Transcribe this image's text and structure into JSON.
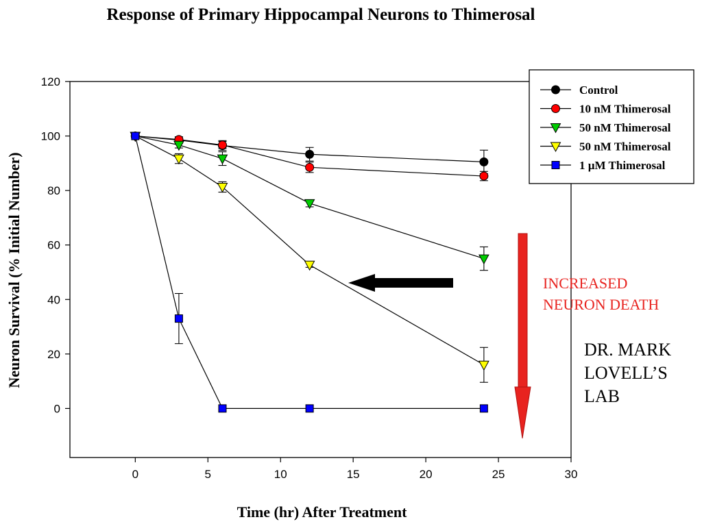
{
  "chart_data": {
    "type": "line",
    "title": "Response of Primary Hippocampal Neurons to Thimerosal",
    "xlabel": "Time (hr) After Treatment",
    "ylabel": "Neuron Survival (% Initial Number)",
    "xlim": [
      -4.5,
      30
    ],
    "ylim": [
      -18,
      120
    ],
    "xticks": [
      0,
      5,
      10,
      15,
      20,
      25,
      30
    ],
    "yticks": [
      0,
      20,
      40,
      60,
      80,
      100,
      120
    ],
    "grid": false,
    "legend_position": "top-right",
    "series": [
      {
        "name": "Control",
        "marker": "circle",
        "color": "#000000",
        "x": [
          0,
          3,
          6,
          12,
          24
        ],
        "y": [
          100,
          98.5,
          96.5,
          93.3,
          90.5
        ],
        "err": [
          0.7,
          1.2,
          1.8,
          2.5,
          4.3
        ]
      },
      {
        "name": "10 nM Thimerosal",
        "marker": "circle",
        "color": "#ff0000",
        "x": [
          0,
          3,
          6,
          12,
          24
        ],
        "y": [
          100,
          98.7,
          96.7,
          88.5,
          85.3
        ],
        "err": [
          0.6,
          1.0,
          1.3,
          1.9,
          1.7
        ]
      },
      {
        "name": "50 nM Thimerosal",
        "marker": "triangle-down",
        "color": "#00cc00",
        "x": [
          0,
          3,
          6,
          12,
          24
        ],
        "y": [
          100,
          96.7,
          91.7,
          75.3,
          55
        ],
        "err": [
          0.6,
          1.1,
          2.5,
          1.3,
          4.3
        ]
      },
      {
        "name": "50 nM Thimerosal",
        "marker": "triangle-down",
        "color": "#ffff00",
        "x": [
          0,
          3,
          6,
          12,
          24
        ],
        "y": [
          100,
          91.7,
          81.3,
          52.7,
          16
        ],
        "err": [
          0.6,
          1.8,
          1.9,
          0.9,
          6.4
        ]
      },
      {
        "name": "1 µM Thimerosal",
        "marker": "square",
        "color": "#0000ff",
        "x": [
          0,
          3,
          6,
          12,
          24
        ],
        "y": [
          100,
          33,
          0,
          0,
          0
        ],
        "err": [
          0.5,
          9.2,
          0,
          0,
          0
        ]
      }
    ],
    "annotations": {
      "increased_death_line1": "INCREASED",
      "increased_death_line2": "NEURON DEATH",
      "lab_line1": "DR. MARK",
      "lab_line2": "LOVELL’S",
      "lab_line3": "LAB",
      "black_arrow_icon": "left-arrow-icon",
      "red_arrow_icon": "down-arrow-icon",
      "red_color": "#e8231f"
    }
  }
}
